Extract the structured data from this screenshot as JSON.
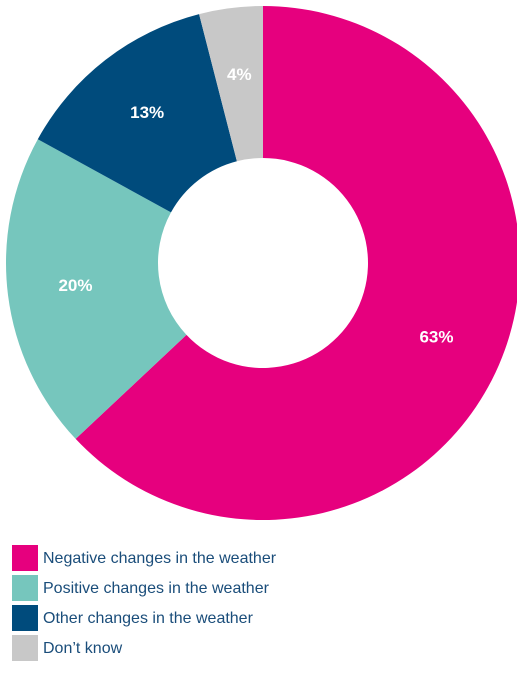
{
  "chart_data": {
    "type": "donut",
    "categories": [
      "Negative changes in the weather",
      "Positive changes in the weather",
      "Other changes in the weather",
      "Don’t know"
    ],
    "values": [
      63,
      20,
      13,
      4
    ],
    "value_labels": [
      "63%",
      "20%",
      "13%",
      "4%"
    ],
    "colors": [
      "#e6007e",
      "#76c6bd",
      "#004b7c",
      "#c8c8c8"
    ],
    "legend": "bottom-left"
  }
}
